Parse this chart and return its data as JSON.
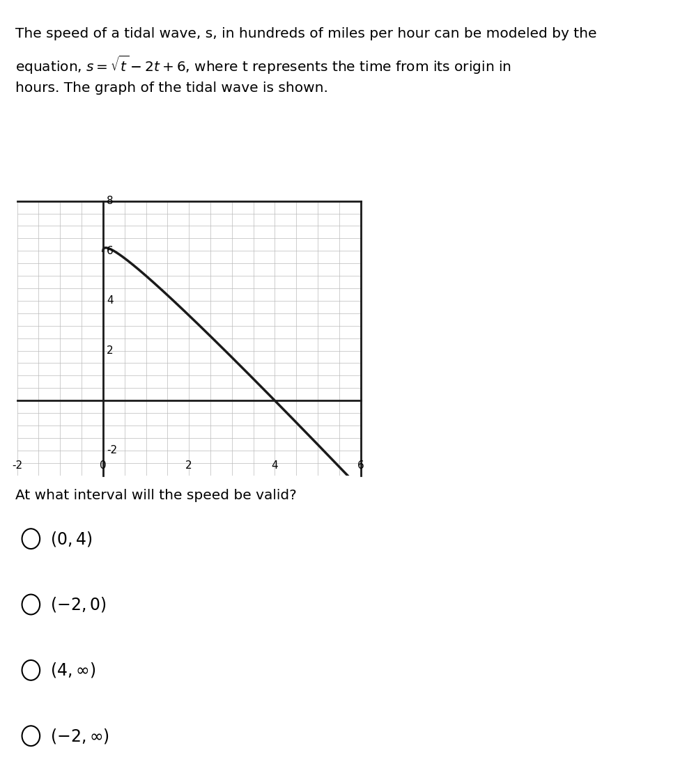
{
  "text_line1": "The speed of a tidal wave, s, in hundreds of miles per hour can be modeled by the",
  "text_line2": "equation, $s = \\sqrt{t} - 2t + 6$, where t represents the time from its origin in",
  "text_line3": "hours. The graph of the tidal wave is shown.",
  "question": "At what interval will the speed be valid?",
  "choices": [
    "$(0, 4)$",
    "$(-2, 0)$",
    "$(4, \\infty)$",
    "$(-2, \\infty)$"
  ],
  "graph_xlim": [
    -2,
    6
  ],
  "graph_ylim": [
    -3,
    8
  ],
  "graph_xticks": [
    -2,
    0,
    2,
    4,
    6
  ],
  "graph_yticks": [
    -2,
    2,
    4,
    6,
    8
  ],
  "curve_color": "#1a1a1a",
  "curve_linewidth": 2.5,
  "grid_color": "#bbbbbb",
  "axis_color": "#1a1a1a",
  "background_color": "#ffffff",
  "font_size_text": 14.5,
  "font_size_question": 14.5,
  "font_size_choices": 17,
  "font_size_ticks": 11
}
